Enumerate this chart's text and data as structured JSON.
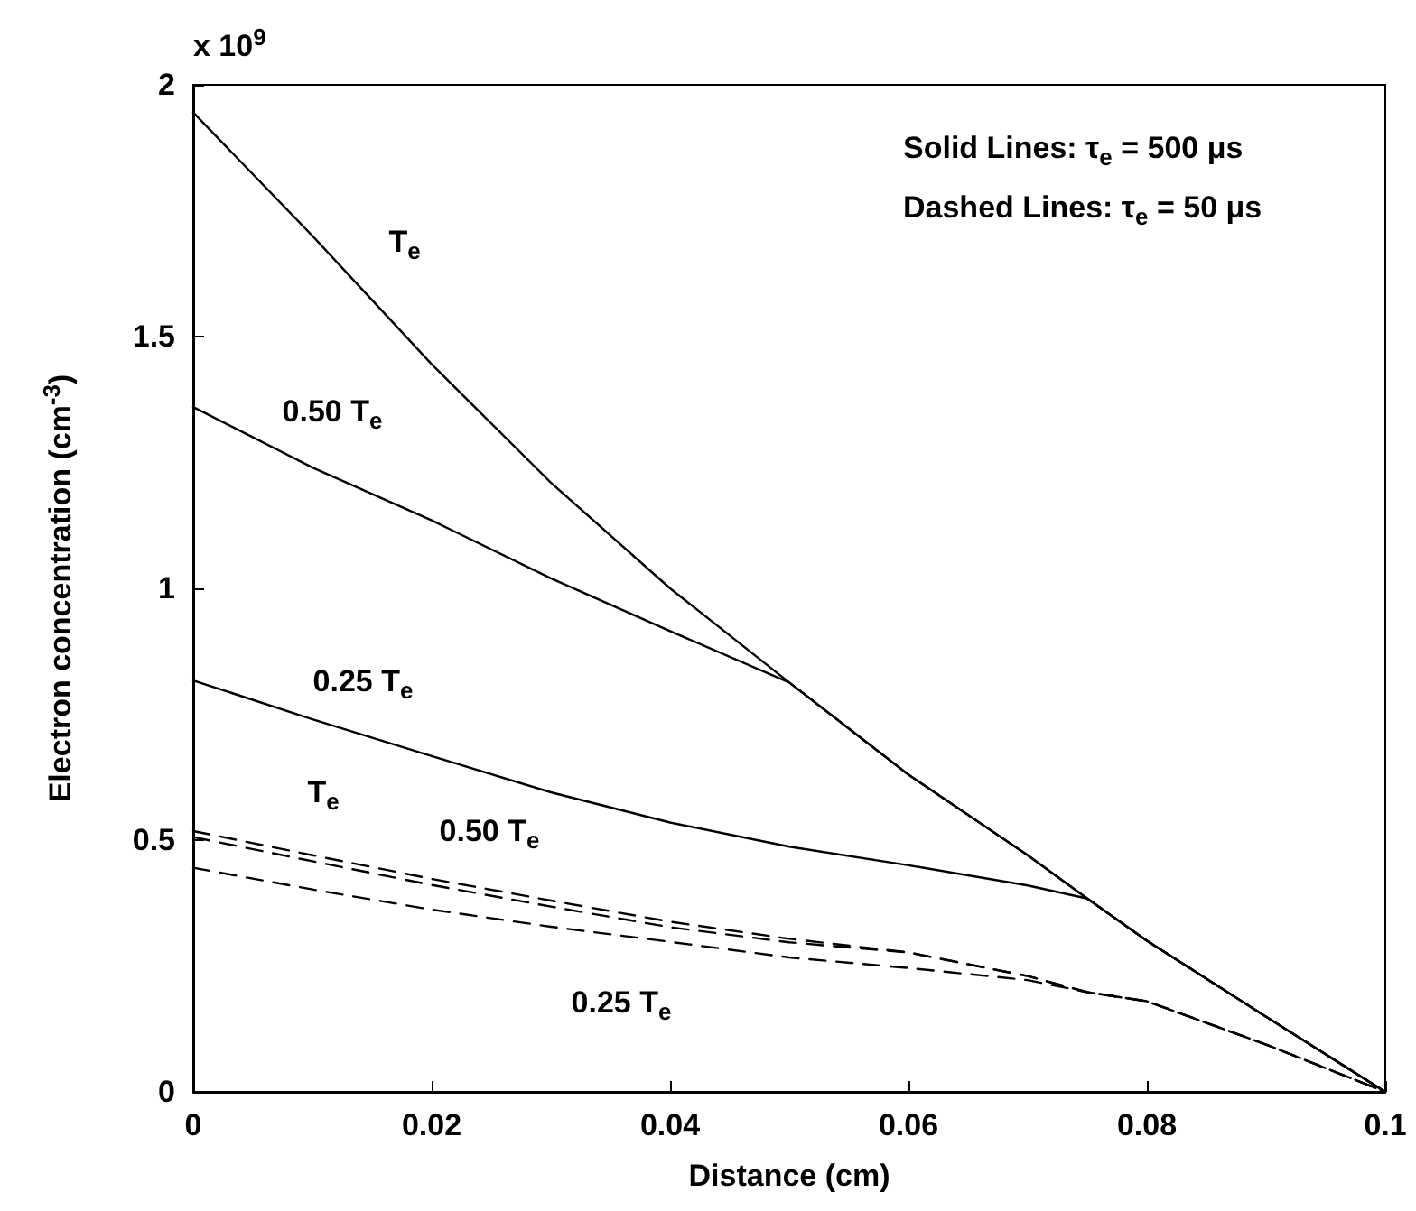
{
  "chart_data": {
    "type": "line",
    "xlabel": "Distance (cm)",
    "ylabel": "Electron concentration (cm$^{-3}$)",
    "x": [
      0,
      0.01,
      0.02,
      0.03,
      0.04,
      0.05,
      0.06,
      0.07,
      0.075,
      0.08,
      0.09,
      0.1
    ],
    "series": [
      {
        "name": "T$_{e}$",
        "color": "#000000",
        "line_style": "solid",
        "values": [
          1.945,
          1.7,
          1.445,
          1.21,
          1.0,
          0.813,
          0.63,
          0.47,
          0.384,
          0.3,
          0.149,
          0
        ]
      },
      {
        "name": "0.50 T$_{e}$",
        "color": "#000000",
        "line_style": "solid",
        "values": [
          1.36,
          1.24,
          1.135,
          1.02,
          0.915,
          0.813,
          0.63,
          0.47,
          0.384,
          0.3,
          0.149,
          0
        ]
      },
      {
        "name": "0.25 T$_{e}$",
        "color": "#000000",
        "line_style": "solid",
        "values": [
          0.817,
          0.74,
          0.667,
          0.595,
          0.535,
          0.487,
          0.45,
          0.41,
          0.384,
          0.3,
          0.149,
          0
        ]
      },
      {
        "name": "T$_{e}$",
        "color": "#000000",
        "line_style": "dashed",
        "values": [
          0.518,
          0.47,
          0.423,
          0.38,
          0.338,
          0.304,
          0.277,
          0.23,
          0.198,
          0.18,
          0.094,
          0
        ]
      },
      {
        "name": "0.50 T$_{e}$",
        "color": "#000000",
        "line_style": "dashed",
        "values": [
          0.506,
          0.458,
          0.411,
          0.368,
          0.327,
          0.297,
          0.277,
          0.23,
          0.198,
          0.18,
          0.094,
          0
        ]
      },
      {
        "name": "0.25 T$_{e}$",
        "color": "#000000",
        "line_style": "dashed",
        "values": [
          0.445,
          0.402,
          0.362,
          0.328,
          0.298,
          0.267,
          0.246,
          0.222,
          0.198,
          0.18,
          0.094,
          0
        ]
      }
    ],
    "xlim": [
      0,
      0.1
    ],
    "xticks": [
      0,
      0.02,
      0.04,
      0.06,
      0.08,
      0.1
    ],
    "ylim": [
      0,
      2
    ],
    "yticks": [
      0,
      0.5,
      1,
      1.5,
      2
    ],
    "grid": false,
    "legend": false,
    "marker": "none",
    "annotations": [
      "x 10$^{9}$",
      "Solid Lines: τ$_{e}$ = 500 μs",
      "Dashed Lines: τ$_{e}$ = 50 μs"
    ]
  }
}
